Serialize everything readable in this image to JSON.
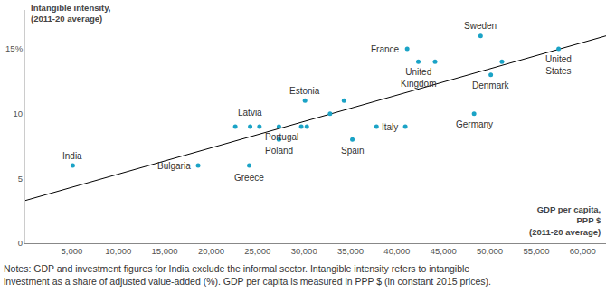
{
  "chart_data": {
    "type": "scatter",
    "y_label": "Intangible intensity,\n(2011-20 average)",
    "x_label": "GDP per capita,\nPPP $\n(2011-20 average)",
    "notes": "Notes: GDP and investment figures for India exclude the informal sector. Intangible intensity refers to intangible\ninvestment as a share of adjusted value-added (%). GDP per capita is measured in PPP $ (in constant 2015 prices).",
    "labels": [
      "India",
      "Bulgaria",
      "Greece",
      null,
      "Latvia",
      null,
      null,
      "Poland",
      "Portugal",
      null,
      "Estonia",
      null,
      null,
      "Spain",
      "Italy",
      null,
      "France",
      "United\nKingdom",
      null,
      "Germany",
      "Sweden",
      "Denmark",
      null,
      "United\nStates"
    ],
    "x": [
      5100,
      18600,
      24100,
      22600,
      24200,
      25200,
      27300,
      27300,
      29700,
      30300,
      30100,
      32800,
      34300,
      35200,
      37800,
      40900,
      41100,
      42300,
      44100,
      48300,
      49000,
      50100,
      51300,
      57400
    ],
    "values": [
      6.0,
      6.0,
      6.0,
      9.0,
      9.0,
      9.0,
      9.0,
      8.0,
      9.0,
      9.0,
      11.0,
      10.0,
      11.0,
      8.0,
      9.0,
      9.0,
      15.0,
      14.0,
      14.0,
      10.0,
      16.0,
      13.0,
      14.0,
      15.0
    ],
    "color": "#1ba3c6",
    "marker": "circle",
    "trend": {
      "type": "line",
      "x": [
        0,
        62500
      ],
      "values": [
        3.3,
        16.0
      ],
      "color": "#000000"
    },
    "xlim": [
      0,
      62500
    ],
    "ylim": [
      0,
      18
    ],
    "xticks": [
      {
        "value": 5000,
        "label": "5,000"
      },
      {
        "value": 10000,
        "label": "10,000"
      },
      {
        "value": 15000,
        "label": "15,000"
      },
      {
        "value": 20000,
        "label": "20,000"
      },
      {
        "value": 25000,
        "label": "25,000"
      },
      {
        "value": 30000,
        "label": "30,000"
      },
      {
        "value": 35000,
        "label": "35,000"
      },
      {
        "value": 40000,
        "label": "40,000"
      },
      {
        "value": 45000,
        "label": "45,000"
      },
      {
        "value": 50000,
        "label": "50,000"
      },
      {
        "value": 55000,
        "label": "55,000"
      },
      {
        "value": 60000,
        "label": "60,000"
      }
    ],
    "yticks": [
      0,
      5,
      10,
      {
        "value": 15,
        "label": "15%"
      }
    ],
    "grid": false
  }
}
